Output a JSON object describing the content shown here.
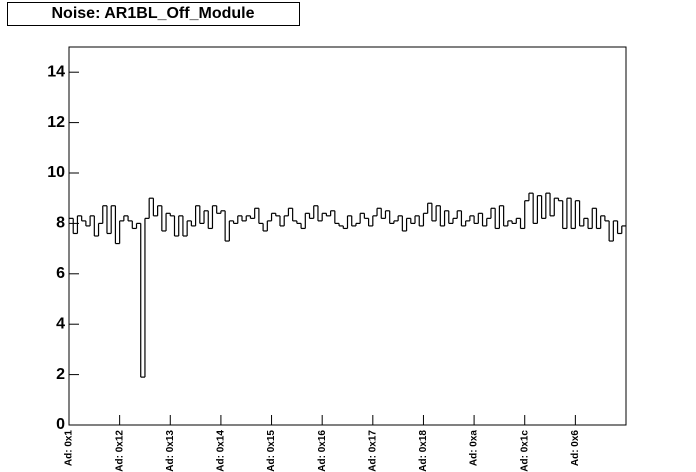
{
  "chart_data": {
    "type": "step",
    "title": "Noise: AR1BL_Off_Module",
    "categories": [
      "Ad: 0x1",
      null,
      null,
      null,
      null,
      null,
      null,
      null,
      null,
      null,
      null,
      null,
      "Ad: 0x12",
      null,
      null,
      null,
      null,
      null,
      null,
      null,
      null,
      null,
      null,
      null,
      "Ad: 0x13",
      null,
      null,
      null,
      null,
      null,
      null,
      null,
      null,
      null,
      null,
      null,
      "Ad: 0x14",
      null,
      null,
      null,
      null,
      null,
      null,
      null,
      null,
      null,
      null,
      null,
      "Ad: 0x15",
      null,
      null,
      null,
      null,
      null,
      null,
      null,
      null,
      null,
      null,
      null,
      "Ad: 0x16",
      null,
      null,
      null,
      null,
      null,
      null,
      null,
      null,
      null,
      null,
      null,
      "Ad: 0x17",
      null,
      null,
      null,
      null,
      null,
      null,
      null,
      null,
      null,
      null,
      null,
      "Ad: 0x18",
      null,
      null,
      null,
      null,
      null,
      null,
      null,
      null,
      null,
      null,
      null,
      "Ad: 0xa",
      null,
      null,
      null,
      null,
      null,
      null,
      null,
      null,
      null,
      null,
      null,
      "Ad: 0x1c",
      null,
      null,
      null,
      null,
      null,
      null,
      null,
      null,
      null,
      null,
      null,
      "Ad: 0x6",
      null,
      null,
      null,
      null,
      null,
      null,
      null,
      null,
      null,
      null,
      null
    ],
    "values": [
      8.2,
      7.6,
      8.3,
      8.1,
      7.9,
      8.3,
      7.5,
      8.0,
      8.7,
      7.6,
      8.7,
      7.2,
      8.1,
      8.3,
      8.1,
      7.8,
      8.0,
      1.9,
      8.2,
      9.0,
      8.3,
      8.7,
      7.7,
      8.4,
      8.3,
      7.5,
      8.3,
      7.5,
      8.1,
      7.9,
      8.7,
      8.0,
      8.5,
      7.8,
      8.7,
      8.4,
      8.5,
      7.3,
      8.1,
      8.0,
      8.3,
      8.1,
      8.3,
      8.2,
      8.6,
      8.0,
      7.7,
      8.1,
      8.4,
      8.3,
      7.9,
      8.3,
      8.6,
      8.1,
      8.0,
      7.8,
      8.4,
      8.2,
      8.7,
      8.1,
      8.4,
      8.3,
      8.5,
      8.0,
      7.9,
      7.8,
      8.3,
      7.9,
      8.0,
      8.4,
      8.2,
      7.9,
      8.3,
      8.6,
      8.2,
      8.5,
      8.0,
      8.1,
      8.3,
      7.7,
      8.2,
      8.0,
      8.3,
      7.9,
      8.4,
      8.8,
      8.1,
      8.7,
      7.9,
      8.5,
      8.0,
      8.2,
      8.5,
      7.9,
      8.1,
      8.3,
      8.0,
      8.4,
      7.9,
      8.2,
      8.6,
      7.8,
      8.7,
      7.9,
      8.1,
      8.0,
      8.2,
      7.8,
      8.9,
      9.2,
      8.0,
      9.1,
      8.2,
      9.2,
      8.3,
      9.0,
      8.9,
      7.8,
      9.0,
      7.8,
      8.9,
      7.9,
      8.2,
      7.8,
      8.6,
      7.8,
      8.3,
      8.1,
      7.3,
      8.1,
      7.6,
      7.9
    ],
    "color": "#000000",
    "ylim": [
      0,
      15
    ],
    "yticks": [
      0,
      2,
      4,
      6,
      8,
      10,
      12,
      14
    ]
  }
}
